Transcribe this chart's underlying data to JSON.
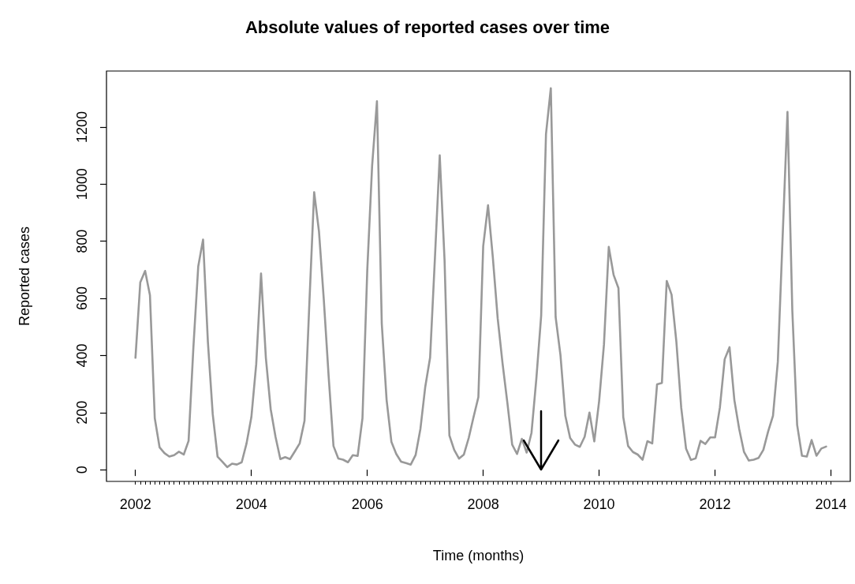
{
  "chart_data": {
    "type": "line",
    "title": "Absolute values of reported cases over time",
    "xlabel": "Time (months)",
    "ylabel": "Reported cases",
    "x": [
      "2002-01",
      "2002-02",
      "2002-03",
      "2002-04",
      "2002-05",
      "2002-06",
      "2002-07",
      "2002-08",
      "2002-09",
      "2002-10",
      "2002-11",
      "2002-12",
      "2003-01",
      "2003-02",
      "2003-03",
      "2003-04",
      "2003-05",
      "2003-06",
      "2003-07",
      "2003-08",
      "2003-09",
      "2003-10",
      "2003-11",
      "2003-12",
      "2004-01",
      "2004-02",
      "2004-03",
      "2004-04",
      "2004-05",
      "2004-06",
      "2004-07",
      "2004-08",
      "2004-09",
      "2004-10",
      "2004-11",
      "2004-12",
      "2005-01",
      "2005-02",
      "2005-03",
      "2005-04",
      "2005-05",
      "2005-06",
      "2005-07",
      "2005-08",
      "2005-09",
      "2005-10",
      "2005-11",
      "2005-12",
      "2006-01",
      "2006-02",
      "2006-03",
      "2006-04",
      "2006-05",
      "2006-06",
      "2006-07",
      "2006-08",
      "2006-09",
      "2006-10",
      "2006-11",
      "2006-12",
      "2007-01",
      "2007-02",
      "2007-03",
      "2007-04",
      "2007-05",
      "2007-06",
      "2007-07",
      "2007-08",
      "2007-09",
      "2007-10",
      "2007-11",
      "2007-12",
      "2008-01",
      "2008-02",
      "2008-03",
      "2008-04",
      "2008-05",
      "2008-06",
      "2008-07",
      "2008-08",
      "2008-09",
      "2008-10",
      "2008-11",
      "2008-12",
      "2009-01",
      "2009-02",
      "2009-03",
      "2009-04",
      "2009-05",
      "2009-06",
      "2009-07",
      "2009-08",
      "2009-09",
      "2009-10",
      "2009-11",
      "2009-12",
      "2010-01",
      "2010-02",
      "2010-03",
      "2010-04",
      "2010-05",
      "2010-06",
      "2010-07",
      "2010-08",
      "2010-09",
      "2010-10",
      "2010-11",
      "2010-12",
      "2011-01",
      "2011-02",
      "2011-03",
      "2011-04",
      "2011-05",
      "2011-06",
      "2011-07",
      "2011-08",
      "2011-09",
      "2011-10",
      "2011-11",
      "2011-12",
      "2012-01",
      "2012-02",
      "2012-03",
      "2012-04",
      "2012-05",
      "2012-06",
      "2012-07",
      "2012-08",
      "2012-09",
      "2012-10",
      "2012-11",
      "2012-12",
      "2013-01",
      "2013-02",
      "2013-03",
      "2013-04",
      "2013-05",
      "2013-06",
      "2013-07",
      "2013-08",
      "2013-09",
      "2013-10",
      "2013-11",
      "2013-12"
    ],
    "series": [
      {
        "color": "#999999",
        "values": [
          392,
          656,
          696,
          611,
          180,
          78,
          58,
          46,
          51,
          63,
          53,
          101,
          430,
          712,
          806,
          447,
          194,
          46,
          28,
          9,
          21,
          18,
          26,
          92,
          184,
          369,
          687,
          392,
          212,
          115,
          37,
          44,
          37,
          64,
          92,
          171,
          580,
          972,
          834,
          594,
          327,
          83,
          39,
          35,
          26,
          51,
          48,
          180,
          700,
          1064,
          1290,
          511,
          244,
          97,
          55,
          28,
          23,
          18,
          51,
          143,
          290,
          392,
          740,
          1101,
          733,
          120,
          69,
          39,
          53,
          111,
          184,
          254,
          783,
          926,
          742,
          530,
          373,
          235,
          88,
          55,
          108,
          60,
          129,
          318,
          539,
          1175,
          1336,
          534,
          401,
          189,
          111,
          88,
          80,
          115,
          200,
          99,
          240,
          438,
          780,
          682,
          636,
          184,
          83,
          62,
          53,
          35,
          100,
          92,
          299,
          304,
          661,
          613,
          447,
          217,
          74,
          34,
          40,
          101,
          90,
          113,
          113,
          217,
          387,
          429,
          244,
          143,
          62,
          32,
          35,
          41,
          69,
          134,
          189,
          378,
          816,
          1253,
          558,
          157,
          49,
          46,
          104,
          49,
          74,
          81
        ]
      }
    ],
    "xlim": [
      "2001-07",
      "2014-05"
    ],
    "xticks": [
      {
        "value": "2002",
        "label": "2002"
      },
      {
        "value": "2004",
        "label": "2004"
      },
      {
        "value": "2006",
        "label": "2006"
      },
      {
        "value": "2008",
        "label": "2008"
      },
      {
        "value": "2010",
        "label": "2010"
      },
      {
        "value": "2012",
        "label": "2012"
      },
      {
        "value": "2014",
        "label": "2014"
      }
    ],
    "ylim": [
      -41,
      1396
    ],
    "yticks": [
      0,
      200,
      400,
      600,
      800,
      1000,
      1200
    ],
    "grid": false,
    "marker": "none",
    "line_style": "solid"
  }
}
